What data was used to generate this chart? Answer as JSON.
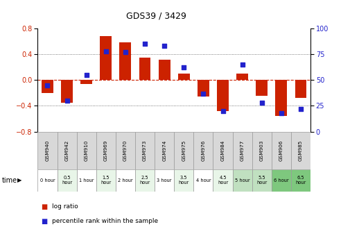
{
  "title": "GDS39 / 3429",
  "samples": [
    "GSM940",
    "GSM942",
    "GSM910",
    "GSM969",
    "GSM970",
    "GSM973",
    "GSM974",
    "GSM975",
    "GSM976",
    "GSM984",
    "GSM977",
    "GSM903",
    "GSM906",
    "GSM985"
  ],
  "time_labels": [
    "0 hour",
    "0.5\nhour",
    "1 hour",
    "1.5\nhour",
    "2 hour",
    "2.5\nhour",
    "3 hour",
    "3.5\nhour",
    "4 hour",
    "4.5\nhour",
    "5 hour",
    "5.5\nhour",
    "6 hour",
    "6.5\nhour"
  ],
  "log_ratio": [
    -0.2,
    -0.35,
    -0.06,
    0.68,
    0.58,
    0.35,
    0.32,
    0.1,
    -0.25,
    -0.48,
    0.1,
    -0.24,
    -0.56,
    -0.28
  ],
  "percentile": [
    45,
    30,
    55,
    78,
    77,
    85,
    83,
    62,
    37,
    20,
    65,
    28,
    18,
    22
  ],
  "bar_color": "#cc2200",
  "dot_color": "#2222cc",
  "zero_line_color": "#cc2200",
  "grid_color": "#333333",
  "ylim_left": [
    -0.8,
    0.8
  ],
  "ylim_right": [
    0,
    100
  ],
  "yticks_left": [
    -0.8,
    -0.4,
    0,
    0.4,
    0.8
  ],
  "yticks_right": [
    0,
    25,
    50,
    75,
    100
  ],
  "bar_width": 0.6,
  "time_row_colors": [
    "#ffffff",
    "#e8f5e8",
    "#ffffff",
    "#e8f5e8",
    "#ffffff",
    "#e8f5e8",
    "#ffffff",
    "#e8f5e8",
    "#ffffff",
    "#e8f5e8",
    "#c0e0c0",
    "#c0e0c0",
    "#7ec87e",
    "#7ec87e"
  ],
  "gsm_row_color": "#d8d8d8",
  "label_log": "log ratio",
  "label_pct": "percentile rank within the sample",
  "time_arrow_label": "time"
}
